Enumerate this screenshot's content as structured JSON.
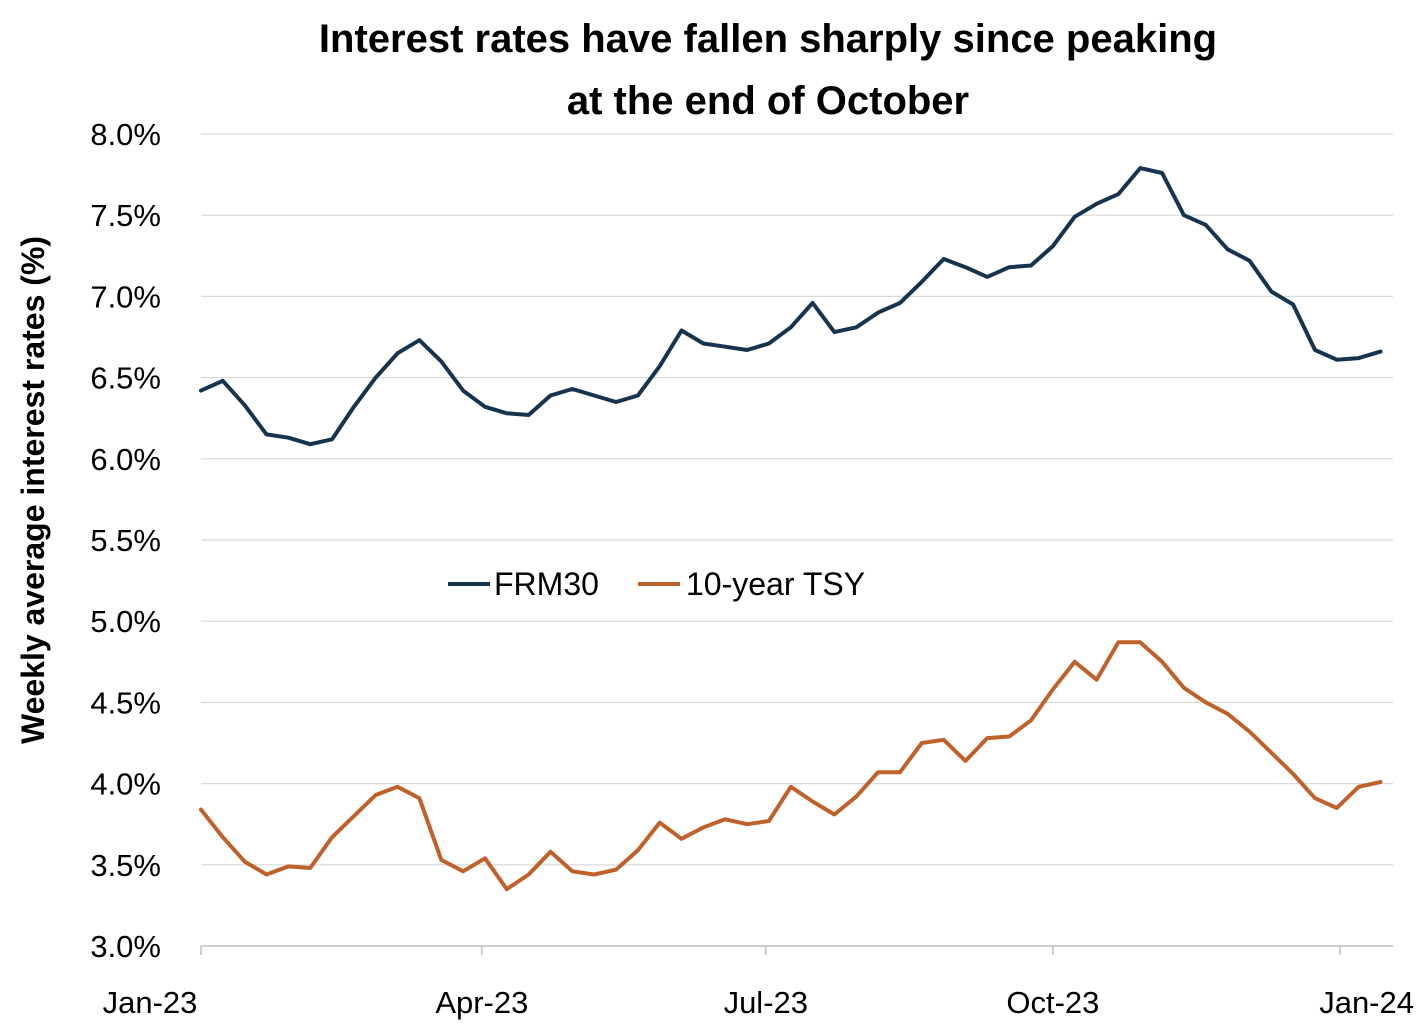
{
  "chart_data": {
    "type": "line",
    "title": "Interest rates have fallen sharply since peaking at the end of October",
    "title_lines": [
      "Interest rates have fallen sharply since peaking",
      "at the end of October"
    ],
    "xlabel": "",
    "ylabel": "Weekly average interest rates (%)",
    "ylim": [
      3.0,
      8.0
    ],
    "y_ticks": [
      3.0,
      3.5,
      4.0,
      4.5,
      5.0,
      5.5,
      6.0,
      6.5,
      7.0,
      7.5,
      8.0
    ],
    "y_tick_labels": [
      "3.0%",
      "3.5%",
      "4.0%",
      "4.5%",
      "5.0%",
      "5.5%",
      "6.0%",
      "6.5%",
      "7.0%",
      "7.5%",
      "8.0%"
    ],
    "xlim": [
      "2023-01-01",
      "2024-01-18"
    ],
    "x_ticks": [
      "2023-01-01",
      "2023-04-01",
      "2023-07-01",
      "2023-10-01",
      "2024-01-01"
    ],
    "x_tick_labels": [
      "Jan-23",
      "Apr-23",
      "Jul-23",
      "Oct-23",
      "Jan-24"
    ],
    "grid": true,
    "legend_position": "center",
    "x": [
      "2023-01-01",
      "2023-01-08",
      "2023-01-15",
      "2023-01-22",
      "2023-01-29",
      "2023-02-05",
      "2023-02-12",
      "2023-02-19",
      "2023-02-26",
      "2023-03-05",
      "2023-03-12",
      "2023-03-19",
      "2023-03-26",
      "2023-04-02",
      "2023-04-09",
      "2023-04-16",
      "2023-04-23",
      "2023-04-30",
      "2023-05-07",
      "2023-05-14",
      "2023-05-21",
      "2023-05-28",
      "2023-06-04",
      "2023-06-11",
      "2023-06-18",
      "2023-06-25",
      "2023-07-02",
      "2023-07-09",
      "2023-07-16",
      "2023-07-23",
      "2023-07-30",
      "2023-08-06",
      "2023-08-13",
      "2023-08-20",
      "2023-08-27",
      "2023-09-03",
      "2023-09-10",
      "2023-09-17",
      "2023-09-24",
      "2023-10-01",
      "2023-10-08",
      "2023-10-15",
      "2023-10-22",
      "2023-10-29",
      "2023-11-05",
      "2023-11-12",
      "2023-11-19",
      "2023-11-26",
      "2023-12-03",
      "2023-12-10",
      "2023-12-17",
      "2023-12-24",
      "2023-12-31",
      "2024-01-07",
      "2024-01-14"
    ],
    "series": [
      {
        "name": "FRM30",
        "color": "#16344f",
        "values": [
          6.42,
          6.48,
          6.33,
          6.15,
          6.13,
          6.09,
          6.12,
          6.32,
          6.5,
          6.65,
          6.73,
          6.6,
          6.42,
          6.32,
          6.28,
          6.27,
          6.39,
          6.43,
          6.39,
          6.35,
          6.39,
          6.57,
          6.79,
          6.71,
          6.69,
          6.67,
          6.71,
          6.81,
          6.96,
          6.78,
          6.81,
          6.9,
          6.96,
          7.09,
          7.23,
          7.18,
          7.12,
          7.18,
          7.19,
          7.31,
          7.49,
          7.57,
          7.63,
          7.79,
          7.76,
          7.5,
          7.44,
          7.29,
          7.22,
          7.03,
          6.95,
          6.67,
          6.61,
          6.62,
          6.66
        ]
      },
      {
        "name": "10-year TSY",
        "color": "#c0612b",
        "values": [
          3.84,
          3.67,
          3.52,
          3.44,
          3.49,
          3.48,
          3.67,
          3.8,
          3.93,
          3.98,
          3.91,
          3.53,
          3.46,
          3.54,
          3.35,
          3.44,
          3.58,
          3.46,
          3.44,
          3.47,
          3.59,
          3.76,
          3.66,
          3.73,
          3.78,
          3.75,
          3.77,
          3.98,
          3.89,
          3.81,
          3.92,
          4.07,
          4.07,
          4.25,
          4.27,
          4.14,
          4.28,
          4.29,
          4.39,
          4.58,
          4.75,
          4.64,
          4.87,
          4.87,
          4.75,
          4.59,
          4.5,
          4.43,
          4.32,
          4.19,
          4.06,
          3.91,
          3.85,
          3.98,
          4.01
        ]
      }
    ]
  }
}
